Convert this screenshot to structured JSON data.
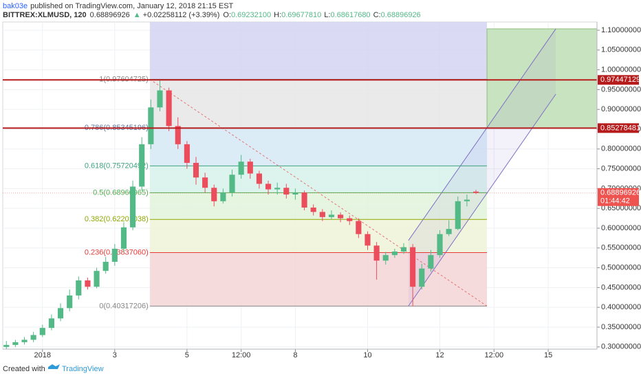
{
  "chart_data": {
    "type": "candlestick",
    "header": {
      "author": "bak03e",
      "published": "published on TradingView.com, January 12, 2018 21:15 EST",
      "symbol": "BITTREX:XLMUSD, 120",
      "price": "0.68896926",
      "change": "+0.02258112 (+3.39%)",
      "ohlc": [
        {
          "label": "O:",
          "value": "0.69232100"
        },
        {
          "label": "H:",
          "value": "0.69677810"
        },
        {
          "label": "L:",
          "value": "0.68617680"
        },
        {
          "label": "C:",
          "value": "0.68896926"
        }
      ]
    },
    "footer": {
      "created": "Created with",
      "brand": "TradingView"
    },
    "xlim": [
      -1.1,
      15.35
    ],
    "ylim": [
      0.2944,
      1.1208
    ],
    "xticks": [
      {
        "value": 0,
        "label": "2018"
      },
      {
        "value": 2,
        "label": "3"
      },
      {
        "value": 4,
        "label": "5"
      },
      {
        "value": 5.5,
        "label": "12:00"
      },
      {
        "value": 7,
        "label": "8"
      },
      {
        "value": 9,
        "label": "10"
      },
      {
        "value": 11,
        "label": "12"
      },
      {
        "value": 12.5,
        "label": "12:00"
      },
      {
        "value": 14,
        "label": "15"
      }
    ],
    "yticks": [
      {
        "value": 1.1,
        "label": "1.10000000"
      },
      {
        "value": 1.05,
        "label": "1.05000000"
      },
      {
        "value": 1.0,
        "label": "1.00000000"
      },
      {
        "value": 0.95,
        "label": "0.95000000"
      },
      {
        "value": 0.9,
        "label": "0.90000000"
      },
      {
        "value": 0.85,
        "label": "0.85000000"
      },
      {
        "value": 0.8,
        "label": "0.80000000"
      },
      {
        "value": 0.75,
        "label": "0.75000000"
      },
      {
        "value": 0.7,
        "label": "0.70000000"
      },
      {
        "value": 0.65,
        "label": "0.65000000"
      },
      {
        "value": 0.6,
        "label": "0.60000000"
      },
      {
        "value": 0.55,
        "label": "0.55000000"
      },
      {
        "value": 0.5,
        "label": "0.50000000"
      },
      {
        "value": 0.45,
        "label": "0.45000000"
      },
      {
        "value": 0.4,
        "label": "0.40000000"
      },
      {
        "value": 0.35,
        "label": "0.35000000"
      },
      {
        "value": 0.3,
        "label": "0.30000000"
      }
    ],
    "grid": true,
    "up_color": "#53b987",
    "down_color": "#eb4d5c",
    "x": [
      -1,
      -0.75,
      -0.5,
      -0.25,
      0,
      0.25,
      0.5,
      0.75,
      1,
      1.25,
      1.5,
      1.75,
      2,
      2.25,
      2.5,
      2.75,
      3,
      3.25,
      3.5,
      3.75,
      4,
      4.25,
      4.5,
      4.75,
      5,
      5.25,
      5.5,
      5.75,
      6,
      6.25,
      6.5,
      6.75,
      7,
      7.25,
      7.5,
      7.75,
      8,
      8.25,
      8.5,
      8.75,
      9,
      9.25,
      9.5,
      9.75,
      10,
      10.25,
      10.5,
      10.75,
      11,
      11.25,
      11.5,
      11.75,
      12
    ],
    "open": [
      0.3,
      0.305,
      0.312,
      0.318,
      0.33,
      0.348,
      0.372,
      0.398,
      0.43,
      0.468,
      0.452,
      0.492,
      0.515,
      0.548,
      0.602,
      0.705,
      0.812,
      0.905,
      0.948,
      0.858,
      0.812,
      0.765,
      0.728,
      0.702,
      0.668,
      0.69,
      0.735,
      0.768,
      0.738,
      0.712,
      0.698,
      0.702,
      0.685,
      0.69,
      0.652,
      0.641,
      0.628,
      0.634,
      0.625,
      0.618,
      0.585,
      0.556,
      0.518,
      0.532,
      0.541,
      0.552,
      0.452,
      0.498,
      0.532,
      0.585,
      0.598,
      0.668,
      0.692321
    ],
    "high": [
      0.315,
      0.318,
      0.325,
      0.338,
      0.356,
      0.382,
      0.41,
      0.445,
      0.478,
      0.475,
      0.5,
      0.527,
      0.56,
      0.615,
      0.72,
      0.83,
      0.925,
      0.976,
      0.955,
      0.88,
      0.82,
      0.78,
      0.74,
      0.71,
      0.7,
      0.748,
      0.785,
      0.775,
      0.745,
      0.72,
      0.715,
      0.712,
      0.7,
      0.695,
      0.66,
      0.648,
      0.645,
      0.64,
      0.632,
      0.625,
      0.592,
      0.565,
      0.54,
      0.548,
      0.562,
      0.56,
      0.51,
      0.545,
      0.595,
      0.62,
      0.68,
      0.685,
      0.6967781
    ],
    "low": [
      0.295,
      0.3,
      0.306,
      0.312,
      0.325,
      0.342,
      0.365,
      0.39,
      0.42,
      0.445,
      0.448,
      0.485,
      0.505,
      0.54,
      0.595,
      0.695,
      0.8,
      0.895,
      0.845,
      0.8,
      0.75,
      0.71,
      0.69,
      0.655,
      0.662,
      0.68,
      0.725,
      0.725,
      0.7,
      0.685,
      0.685,
      0.675,
      0.672,
      0.645,
      0.632,
      0.618,
      0.622,
      0.615,
      0.608,
      0.575,
      0.545,
      0.47,
      0.508,
      0.525,
      0.535,
      0.403,
      0.445,
      0.49,
      0.525,
      0.58,
      0.595,
      0.655,
      0.6861768
    ],
    "close": [
      0.305,
      0.312,
      0.318,
      0.33,
      0.348,
      0.372,
      0.398,
      0.43,
      0.468,
      0.452,
      0.492,
      0.515,
      0.548,
      0.602,
      0.705,
      0.812,
      0.905,
      0.948,
      0.858,
      0.812,
      0.765,
      0.728,
      0.702,
      0.668,
      0.69,
      0.735,
      0.768,
      0.738,
      0.712,
      0.698,
      0.702,
      0.685,
      0.69,
      0.652,
      0.641,
      0.628,
      0.634,
      0.625,
      0.618,
      0.585,
      0.556,
      0.518,
      0.532,
      0.541,
      0.552,
      0.452,
      0.498,
      0.532,
      0.585,
      0.598,
      0.668,
      0.672,
      0.68896926
    ],
    "fib": {
      "x": [
        2.971,
        12.305
      ],
      "levels": [
        {
          "value": 0.97604725,
          "label": "1(0.97604725)",
          "color": "#888888",
          "fill": "#d4d3f3"
        },
        {
          "value": 0.85345196,
          "label": "0.786(0.85345196)",
          "color": "#5a77a8",
          "fill": "#e6e6e6"
        },
        {
          "value": 0.75720492,
          "label": "0.618(0.75720492)",
          "color": "#3ca37d",
          "fill": "#d6e9f6"
        },
        {
          "value": 0.68960965,
          "label": "0.5(0.68960965)",
          "color": "#4caf50",
          "fill": "#d6f2ea"
        },
        {
          "value": 0.62201038,
          "label": "0.382(0.62201038)",
          "color": "#8fa800",
          "fill": "#e2f3da"
        },
        {
          "value": 0.5383706,
          "label": "0.236(0.53837060)",
          "color": "#e53935",
          "fill": "#eef3d7"
        },
        {
          "value": 0.40317206,
          "label": "0(0.40317206)",
          "color": "#888888",
          "fill": "#f5d5d6"
        }
      ]
    },
    "hlines": [
      {
        "value": 0.97447129,
        "label": "0.97447129"
      },
      {
        "value": 0.85278481,
        "label": "0.85278481"
      }
    ],
    "hline_color": "#b71c1c",
    "last_price": {
      "value": 0.68896926,
      "label": "0.68896926",
      "countdown": "01:44:42",
      "color": "#ef5350"
    },
    "box": {
      "x": [
        12.305,
        15.35
      ],
      "y": [
        0.85278481,
        1.1035
      ],
      "color": "#c8e3bf"
    },
    "channel": [
      {
        "x": [
          10.13,
          14.21
        ],
        "y": [
          0.5688,
          1.1035
        ]
      },
      {
        "x": [
          10.13,
          14.21
        ],
        "y": [
          0.40317206,
          0.9385
        ]
      }
    ],
    "trend": {
      "x": [
        2.971,
        12.305
      ],
      "y": [
        0.97604725,
        0.40317206
      ]
    }
  }
}
